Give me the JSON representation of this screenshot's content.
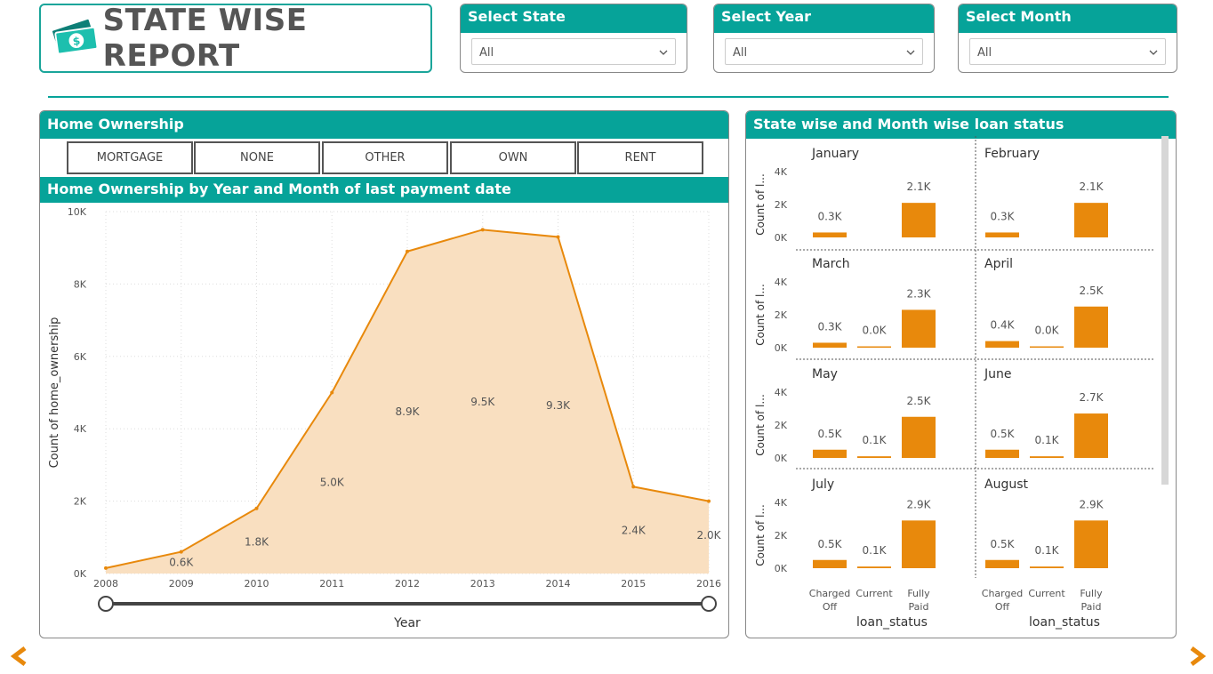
{
  "header": {
    "title": "STATE WISE REPORT",
    "logo_icon": "money-icon"
  },
  "slicers": [
    {
      "label": "Select State",
      "value": "All"
    },
    {
      "label": "Select Year",
      "value": "All"
    },
    {
      "label": "Select Month",
      "value": "All"
    }
  ],
  "home_ownership": {
    "title": "Home Ownership",
    "buttons": [
      "MORTGAGE",
      "NONE",
      "OTHER",
      "OWN",
      "RENT"
    ]
  },
  "colors": {
    "teal": "#06a399",
    "orange": "#e8890c",
    "area_fill": "#f9dfc0"
  },
  "chart_data": [
    {
      "type": "area",
      "title": "Home Ownership by Year and Month of last payment date",
      "xlabel": "Year",
      "ylabel": "Count of home_ownership",
      "x": [
        "2008",
        "2009",
        "2010",
        "2011",
        "2012",
        "2013",
        "2014",
        "2015",
        "2016"
      ],
      "values": [
        0.15,
        0.6,
        1.8,
        5.0,
        8.9,
        9.5,
        9.3,
        2.4,
        2.0
      ],
      "data_labels": [
        "",
        "0.6K",
        "1.8K",
        "5.0K",
        "8.9K",
        "9.5K",
        "9.3K",
        "2.4K",
        "2.0K"
      ],
      "y_ticks": [
        "0K",
        "2K",
        "4K",
        "6K",
        "8K",
        "10K"
      ],
      "ylim": [
        0,
        10
      ],
      "grid": true
    },
    {
      "type": "bar",
      "title": "State wise and Month wise loan status",
      "xlabel": "loan_status",
      "ylabel": "Count of l...",
      "categories": [
        "Charged Off",
        "Current",
        "Fully Paid"
      ],
      "y_ticks": [
        "0K",
        "2K",
        "4K"
      ],
      "ylim": [
        0,
        4
      ],
      "panels": [
        {
          "name": "January",
          "values": [
            0.3,
            0,
            2.1
          ],
          "labels": [
            "0.3K",
            "",
            "2.1K"
          ]
        },
        {
          "name": "February",
          "values": [
            0.3,
            0,
            2.1
          ],
          "labels": [
            "0.3K",
            "",
            "2.1K"
          ]
        },
        {
          "name": "March",
          "values": [
            0.3,
            0.04,
            2.3
          ],
          "labels": [
            "0.3K",
            "0.0K",
            "2.3K"
          ]
        },
        {
          "name": "April",
          "values": [
            0.4,
            0.04,
            2.5
          ],
          "labels": [
            "0.4K",
            "0.0K",
            "2.5K"
          ]
        },
        {
          "name": "May",
          "values": [
            0.5,
            0.1,
            2.5
          ],
          "labels": [
            "0.5K",
            "0.1K",
            "2.5K"
          ]
        },
        {
          "name": "June",
          "values": [
            0.5,
            0.1,
            2.7
          ],
          "labels": [
            "0.5K",
            "0.1K",
            "2.7K"
          ]
        },
        {
          "name": "July",
          "values": [
            0.5,
            0.1,
            2.9
          ],
          "labels": [
            "0.5K",
            "0.1K",
            "2.9K"
          ]
        },
        {
          "name": "August",
          "values": [
            0.5,
            0.1,
            2.9
          ],
          "labels": [
            "0.5K",
            "0.1K",
            "2.9K"
          ]
        }
      ]
    }
  ]
}
